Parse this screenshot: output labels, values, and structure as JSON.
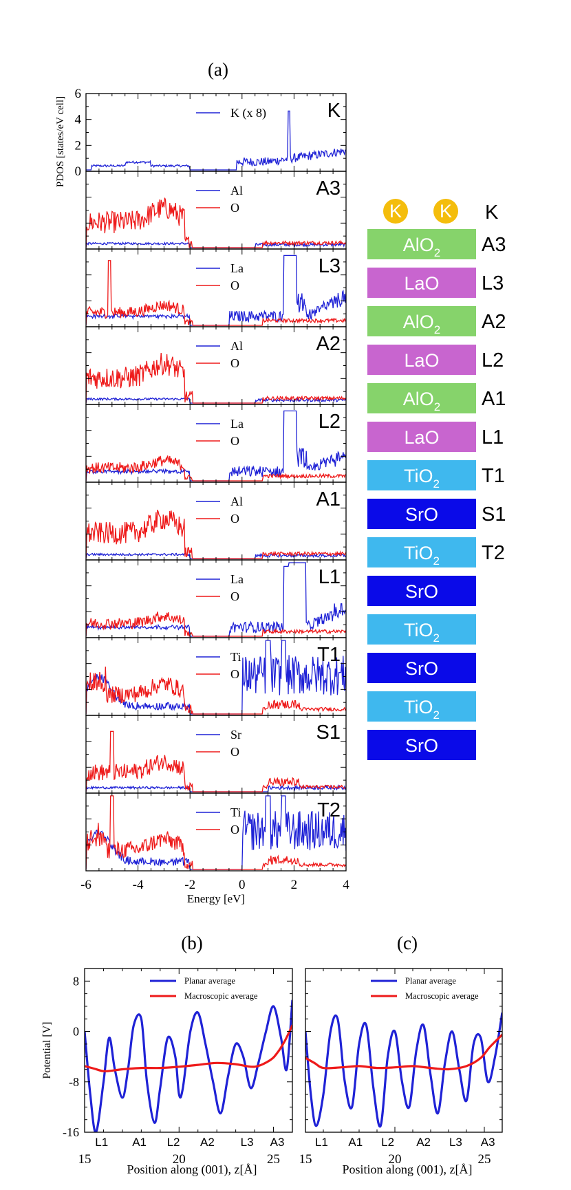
{
  "colors": {
    "blue": "#1f22d6",
    "red": "#ee1a1a",
    "green": "#86d36b",
    "purple": "#c865cf",
    "light_blue": "#3fb8ee",
    "dark_blue": "#0a0ae8",
    "gold": "#f4bd0c"
  },
  "chart_data": [
    {
      "type": "line",
      "panel_label": "(a)",
      "xlabel": "Energy [eV]",
      "ylabel": "PDOS [states/eV cell]",
      "xlim": [
        -6,
        4
      ],
      "x_ticks": [
        "-6",
        "-4",
        "-2",
        "0",
        "2",
        "4"
      ],
      "y_ticks_top_panel": [
        "0",
        "2",
        "4",
        "6"
      ],
      "ylim_top_panel": [
        0,
        6
      ],
      "stacked_panels": [
        {
          "layer": "K",
          "legend": [
            "K (x 8)"
          ],
          "colors": [
            "#1f22d6"
          ]
        },
        {
          "layer": "A3",
          "legend": [
            "Al",
            "O"
          ],
          "colors": [
            "#1f22d6",
            "#ee1a1a"
          ]
        },
        {
          "layer": "L3",
          "legend": [
            "La",
            "O"
          ],
          "colors": [
            "#1f22d6",
            "#ee1a1a"
          ]
        },
        {
          "layer": "A2",
          "legend": [
            "Al",
            "O"
          ],
          "colors": [
            "#1f22d6",
            "#ee1a1a"
          ]
        },
        {
          "layer": "L2",
          "legend": [
            "La",
            "O"
          ],
          "colors": [
            "#1f22d6",
            "#ee1a1a"
          ]
        },
        {
          "layer": "A1",
          "legend": [
            "Al",
            "O"
          ],
          "colors": [
            "#1f22d6",
            "#ee1a1a"
          ]
        },
        {
          "layer": "L1",
          "legend": [
            "La",
            "O"
          ],
          "colors": [
            "#1f22d6",
            "#ee1a1a"
          ]
        },
        {
          "layer": "T1",
          "legend": [
            "Ti",
            "O"
          ],
          "colors": [
            "#1f22d6",
            "#ee1a1a"
          ]
        },
        {
          "layer": "S1",
          "legend": [
            "Sr",
            "O"
          ],
          "colors": [
            "#1f22d6",
            "#ee1a1a"
          ]
        },
        {
          "layer": "T2",
          "legend": [
            "Ti",
            "O"
          ],
          "colors": [
            "#1f22d6",
            "#ee1a1a"
          ]
        }
      ]
    },
    {
      "type": "line",
      "panel_label": "(b)",
      "xlabel": "Position along (001), z[Å]",
      "ylabel": "Potential [V]",
      "xlim": [
        15,
        26
      ],
      "ylim": [
        -16,
        10
      ],
      "x_ticks": [
        "15",
        "20",
        "25"
      ],
      "y_ticks": [
        "8",
        "0",
        "-8",
        "-16"
      ],
      "layer_marks": [
        "L1",
        "A1",
        "L2",
        "A2",
        "L3",
        "A3"
      ],
      "legend": [
        "Planar average",
        "Macroscopic average"
      ],
      "series": [
        {
          "name": "Planar average",
          "color": "#1f22d6",
          "x": [
            15.0,
            15.3,
            15.6,
            16.0,
            16.3,
            16.6,
            17.0,
            17.3,
            17.6,
            18.0,
            18.3,
            18.7,
            19.0,
            19.4,
            19.8,
            20.0,
            20.2,
            20.6,
            21.0,
            21.4,
            21.8,
            22.2,
            22.6,
            23.0,
            23.4,
            23.8,
            24.2,
            24.6,
            25.0,
            25.4,
            25.7,
            26.0
          ],
          "y": [
            0,
            -10,
            -16,
            -8,
            -1,
            -6,
            -10.5,
            -6,
            1,
            2,
            -8,
            -14.5,
            -9,
            -1,
            -4,
            -10,
            -9,
            0,
            3,
            -2,
            -8,
            -13,
            -7,
            -2,
            -4,
            -9,
            -5,
            0,
            4,
            -1,
            -6,
            5
          ]
        },
        {
          "name": "Macroscopic average",
          "color": "#ee1a1a",
          "x": [
            15.0,
            15.5,
            16.0,
            16.5,
            17.0,
            18.0,
            19.0,
            20.0,
            21.0,
            22.0,
            23.0,
            24.0,
            24.8,
            25.2,
            25.6,
            26.0
          ],
          "y": [
            -5.5,
            -5.9,
            -6.3,
            -6.2,
            -6.0,
            -5.8,
            -5.8,
            -5.6,
            -5.3,
            -5.0,
            -5.2,
            -5.6,
            -4.6,
            -3.4,
            -1.5,
            1.0
          ]
        }
      ]
    },
    {
      "type": "line",
      "panel_label": "(c)",
      "xlabel": "Position along (001), z[Å]",
      "xlim": [
        15,
        26
      ],
      "ylim": [
        -16,
        10
      ],
      "x_ticks": [
        "15",
        "20",
        "25"
      ],
      "layer_marks": [
        "L1",
        "A1",
        "L2",
        "A2",
        "L3",
        "A3"
      ],
      "legend": [
        "Planar average",
        "Macroscopic average"
      ],
      "series": [
        {
          "name": "Planar average",
          "color": "#1f22d6",
          "x": [
            15.0,
            15.3,
            15.6,
            16.0,
            16.4,
            16.8,
            17.2,
            17.6,
            18.0,
            18.4,
            18.8,
            19.2,
            19.6,
            20.0,
            20.4,
            20.8,
            21.2,
            21.6,
            22.0,
            22.4,
            22.8,
            23.2,
            23.6,
            24.0,
            24.4,
            24.8,
            25.2,
            25.6,
            26.0
          ],
          "y": [
            0,
            -10,
            -15,
            -10,
            0,
            2,
            -8,
            -12,
            -2,
            1,
            -9,
            -15,
            -4,
            0,
            -8,
            -12,
            -3,
            1,
            -7,
            -13,
            -5,
            0,
            -6,
            -11,
            -2,
            -1,
            -8,
            -4,
            3
          ]
        },
        {
          "name": "Macroscopic average",
          "color": "#ee1a1a",
          "x": [
            15.0,
            15.5,
            16.0,
            17.0,
            18.0,
            19.0,
            20.0,
            21.0,
            22.0,
            23.0,
            24.0,
            24.8,
            25.3,
            26.0
          ],
          "y": [
            -4.2,
            -5.0,
            -5.8,
            -5.7,
            -5.5,
            -5.8,
            -5.7,
            -5.5,
            -5.8,
            -6.0,
            -5.5,
            -4.2,
            -2.5,
            -0.5
          ]
        }
      ]
    }
  ],
  "structure": {
    "k_atoms": [
      "K",
      "K"
    ],
    "k_row_label": "K",
    "layers": [
      {
        "formula": "AlO",
        "sub": "2",
        "label": "A3",
        "color": "#86d36b"
      },
      {
        "formula": "LaO",
        "sub": "",
        "label": "L3",
        "color": "#c865cf"
      },
      {
        "formula": "AlO",
        "sub": "2",
        "label": "A2",
        "color": "#86d36b"
      },
      {
        "formula": "LaO",
        "sub": "",
        "label": "L2",
        "color": "#c865cf"
      },
      {
        "formula": "AlO",
        "sub": "2",
        "label": "A1",
        "color": "#86d36b"
      },
      {
        "formula": "LaO",
        "sub": "",
        "label": "L1",
        "color": "#c865cf"
      },
      {
        "formula": "TiO",
        "sub": "2",
        "label": "T1",
        "color": "#3fb8ee"
      },
      {
        "formula": "SrO",
        "sub": "",
        "label": "S1",
        "color": "#0a0ae8"
      },
      {
        "formula": "TiO",
        "sub": "2",
        "label": "T2",
        "color": "#3fb8ee"
      },
      {
        "formula": "SrO",
        "sub": "",
        "label": "",
        "color": "#0a0ae8"
      },
      {
        "formula": "TiO",
        "sub": "2",
        "label": "",
        "color": "#3fb8ee"
      },
      {
        "formula": "SrO",
        "sub": "",
        "label": "",
        "color": "#0a0ae8"
      },
      {
        "formula": "TiO",
        "sub": "2",
        "label": "",
        "color": "#3fb8ee"
      },
      {
        "formula": "SrO",
        "sub": "",
        "label": "",
        "color": "#0a0ae8"
      }
    ]
  }
}
